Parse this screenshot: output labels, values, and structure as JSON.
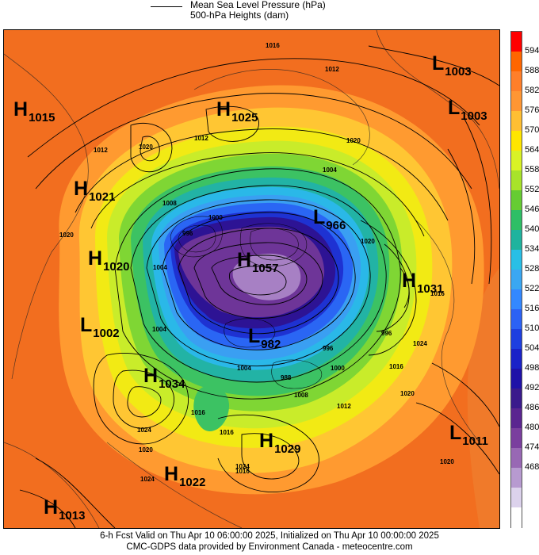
{
  "legend": {
    "mslp_label": "Mean Sea Level Pressure (hPa)",
    "height_label": "500-hPa Heights (dam)"
  },
  "centers": [
    {
      "type": "H",
      "value": "1015"
    },
    {
      "type": "H",
      "value": "1025"
    },
    {
      "type": "L",
      "value": "1003"
    },
    {
      "type": "L",
      "value": "1003"
    },
    {
      "type": "H",
      "value": "1021"
    },
    {
      "type": "L",
      "value": "966"
    },
    {
      "type": "H",
      "value": "1020"
    },
    {
      "type": "H",
      "value": "1057"
    },
    {
      "type": "H",
      "value": "1031"
    },
    {
      "type": "L",
      "value": "1002"
    },
    {
      "type": "L",
      "value": "982"
    },
    {
      "type": "H",
      "value": "1034"
    },
    {
      "type": "H",
      "value": "1029"
    },
    {
      "type": "L",
      "value": "1011"
    },
    {
      "type": "H",
      "value": "1022"
    },
    {
      "type": "H",
      "value": "1013"
    }
  ],
  "isobar_labels": [
    "1016",
    "1012",
    "1020",
    "1012",
    "1004",
    "1020",
    "1008",
    "1000",
    "996",
    "1020",
    "1012",
    "1020",
    "1004",
    "1004",
    "1024",
    "1016",
    "1020",
    "1024",
    "1016",
    "996",
    "988",
    "996",
    "1000",
    "1004",
    "1008",
    "1012",
    "1016",
    "1020",
    "1024",
    "1016",
    "1016",
    "1024",
    "1020"
  ],
  "colorbar": {
    "colors": [
      "#ff0000",
      "#ff6600",
      "#ff7f2a",
      "#ff9633",
      "#ffbf33",
      "#ffe600",
      "#d9f226",
      "#a8e32a",
      "#66cc33",
      "#2ebf66",
      "#1fb39e",
      "#29bfe6",
      "#3aa7f2",
      "#3388ff",
      "#2c62f5",
      "#1e3fe0",
      "#1a22c8",
      "#1f11a8",
      "#3a1a8c",
      "#5a2590",
      "#7a3f9e",
      "#9868b4",
      "#b79ad0",
      "#dcd2ec",
      "#ffffff"
    ],
    "ticks": [
      "594",
      "588",
      "582",
      "576",
      "570",
      "564",
      "558",
      "552",
      "546",
      "540",
      "534",
      "528",
      "522",
      "516",
      "510",
      "504",
      "498",
      "492",
      "486",
      "480",
      "474",
      "468"
    ]
  },
  "footer": {
    "line1": "6-h Fcst Valid on Thu Apr 10 06:00:00 2025, Initialized on Thu Apr 10 00:00:00 2025",
    "line2": "CMC-GDPS data provided by Environment Canada - meteocentre.com"
  }
}
